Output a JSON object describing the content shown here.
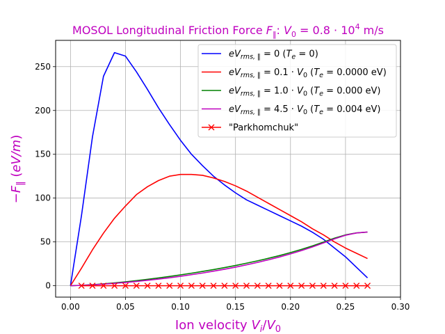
{
  "chart_data": {
    "type": "line",
    "title": "MOSOL Longitudinal Friction Force F‖: V₀ = 0.8·10⁴ m/s",
    "xlabel": "Ion velocity Vᵢ/V₀",
    "ylabel": "−F‖ (eV/m)",
    "xlim": [
      -0.0135,
      0.3
    ],
    "ylim": [
      -13,
      280
    ],
    "xticks": [
      0.0,
      0.05,
      0.1,
      0.15,
      0.2,
      0.25,
      0.3
    ],
    "xtick_labels": [
      "0.00",
      "0.05",
      "0.10",
      "0.15",
      "0.20",
      "0.25",
      "0.30"
    ],
    "yticks": [
      0,
      50,
      100,
      150,
      200,
      250
    ],
    "ytick_labels": [
      "0",
      "50",
      "100",
      "150",
      "200",
      "250"
    ],
    "grid": true,
    "legend_position": "top-right",
    "series": [
      {
        "name": "eV_rms,‖ = 0 (T_e = 0)",
        "color": "#0000ff",
        "marker": "none",
        "x": [
          0.0,
          0.01,
          0.02,
          0.03,
          0.04,
          0.05,
          0.06,
          0.07,
          0.08,
          0.09,
          0.1,
          0.11,
          0.12,
          0.13,
          0.14,
          0.15,
          0.16,
          0.17,
          0.18,
          0.19,
          0.2,
          0.21,
          0.22,
          0.23,
          0.24,
          0.25,
          0.26,
          0.27
        ],
        "y": [
          0,
          80,
          170,
          239,
          266,
          262,
          244,
          224,
          203,
          184,
          166,
          150,
          137,
          125,
          115,
          106,
          98,
          92,
          86,
          80,
          74,
          68,
          61,
          53,
          43,
          33,
          21,
          9
        ]
      },
      {
        "name": "eV_rms,‖ = 0.1·V₀ (T_e = 0.0000 eV)",
        "color": "#ff0000",
        "marker": "none",
        "x": [
          0.0,
          0.01,
          0.02,
          0.03,
          0.04,
          0.05,
          0.06,
          0.07,
          0.08,
          0.09,
          0.1,
          0.11,
          0.12,
          0.13,
          0.14,
          0.15,
          0.16,
          0.17,
          0.18,
          0.19,
          0.2,
          0.21,
          0.22,
          0.23,
          0.24,
          0.25,
          0.26,
          0.27
        ],
        "y": [
          0,
          20,
          41,
          60,
          77,
          91,
          104,
          113,
          120,
          125,
          127,
          127,
          126,
          123,
          119,
          114,
          108,
          101,
          94,
          87,
          80,
          73,
          65,
          58,
          50,
          43,
          37,
          31
        ]
      },
      {
        "name": "eV_rms,‖ = 1.0·V₀ (T_e = 0.000 eV)",
        "color": "#008000",
        "marker": "none",
        "x": [
          0.0,
          0.01,
          0.02,
          0.03,
          0.04,
          0.05,
          0.06,
          0.07,
          0.08,
          0.09,
          0.1,
          0.11,
          0.12,
          0.13,
          0.14,
          0.15,
          0.16,
          0.17,
          0.18,
          0.19,
          0.2,
          0.21,
          0.22,
          0.23,
          0.24,
          0.25,
          0.26,
          0.27
        ],
        "y": [
          0,
          0.5,
          1.2,
          2.1,
          3.2,
          4.4,
          5.8,
          7.3,
          8.9,
          10.6,
          12.4,
          14.3,
          16.3,
          18.4,
          20.7,
          23.1,
          25.7,
          28.4,
          31.3,
          34.4,
          37.8,
          41.5,
          45.5,
          49.8,
          54.3,
          58.0,
          60.3,
          61.2
        ]
      },
      {
        "name": "eV_rms,‖ = 4.5·V₀ (T_e = 0.004 eV)",
        "color": "#bf00bf",
        "marker": "none",
        "x": [
          0.0,
          0.01,
          0.02,
          0.03,
          0.04,
          0.05,
          0.06,
          0.07,
          0.08,
          0.09,
          0.1,
          0.11,
          0.12,
          0.13,
          0.14,
          0.15,
          0.16,
          0.17,
          0.18,
          0.19,
          0.2,
          0.21,
          0.22,
          0.23,
          0.24,
          0.25,
          0.26,
          0.27
        ],
        "y": [
          0,
          0.4,
          1.0,
          1.8,
          2.7,
          3.7,
          4.9,
          6.2,
          7.6,
          9.1,
          10.8,
          12.6,
          14.5,
          16.6,
          18.8,
          21.2,
          23.8,
          26.6,
          29.6,
          32.8,
          36.3,
          40.1,
          44.3,
          48.8,
          53.5,
          57.6,
          60.2,
          61.3
        ]
      },
      {
        "name": "\"Parkhomchuk\"",
        "color": "#ff0000",
        "marker": "x",
        "x": [
          0.01,
          0.02,
          0.03,
          0.04,
          0.05,
          0.06,
          0.07,
          0.08,
          0.09,
          0.1,
          0.11,
          0.12,
          0.13,
          0.14,
          0.15,
          0.16,
          0.17,
          0.18,
          0.19,
          0.2,
          0.21,
          0.22,
          0.23,
          0.24,
          0.25,
          0.26,
          0.27
        ],
        "y": [
          0,
          0,
          0,
          0,
          0,
          0,
          0,
          0,
          0,
          0,
          0,
          0,
          0,
          0,
          0,
          0,
          0,
          0,
          0,
          0,
          0,
          0,
          0,
          0,
          0,
          0,
          0
        ]
      }
    ]
  }
}
